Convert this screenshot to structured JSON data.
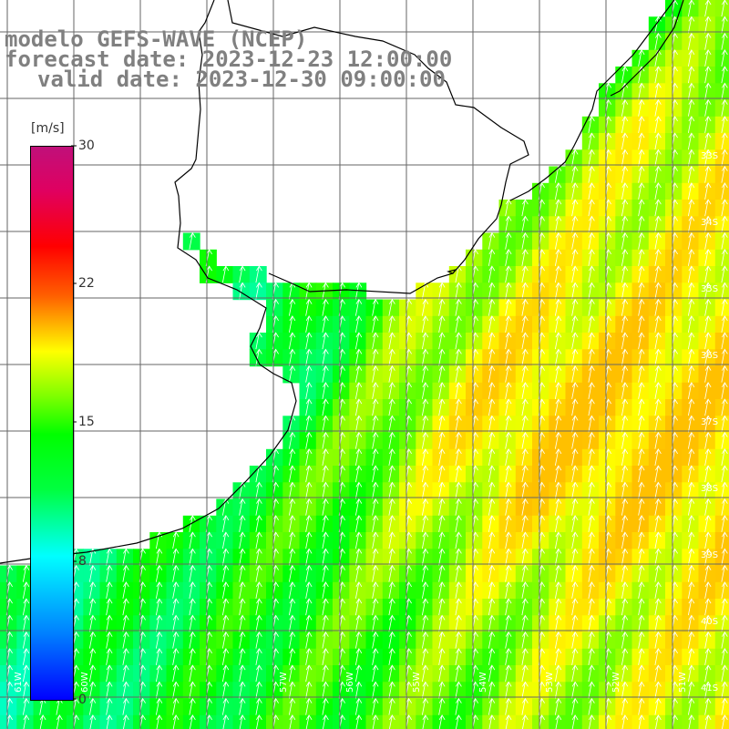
{
  "title": {
    "line1": "modelo GEFS-WAVE (NCEP)",
    "line2": "forecast date: 2023-12-23 12:00:00",
    "line3": "valid date: 2023-12-30 09:00:00"
  },
  "colorbar": {
    "unit": "[m/s]",
    "ticks": [
      "30",
      "22",
      "15",
      "8",
      "0"
    ],
    "range": [
      0,
      30
    ]
  },
  "axes": {
    "lat_labels": [
      "33S",
      "34S",
      "35S",
      "36S",
      "37S",
      "38S",
      "39S",
      "40S",
      "41S"
    ],
    "lon_labels": [
      "61W",
      "60W",
      "57W",
      "56W",
      "55W",
      "54W",
      "53W",
      "52W",
      "51W"
    ]
  },
  "field": {
    "variable": "wind speed",
    "colors": {
      "land": "#ffffff",
      "grid": "#666666",
      "coast": "#000000",
      "arrows": "#ffffff"
    }
  }
}
